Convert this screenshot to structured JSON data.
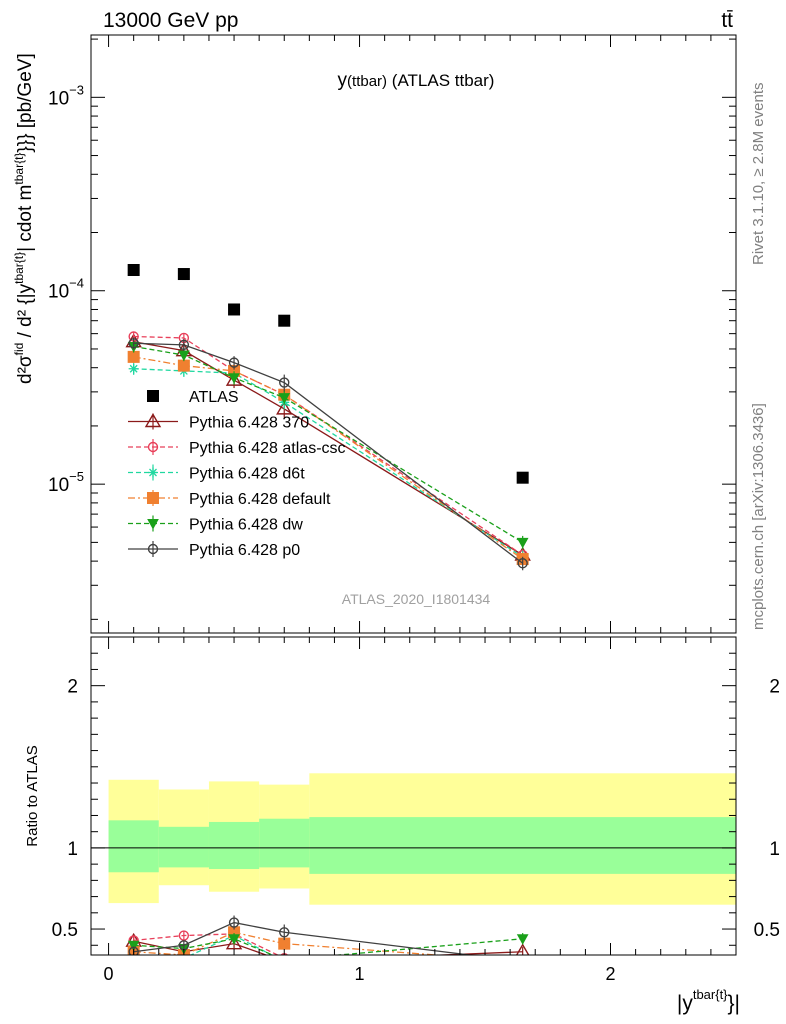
{
  "header": {
    "left": "13000 GeV pp",
    "right": "tt̄",
    "side_right_top": "Rivet 3.1.10, ≥ 2.8M events",
    "side_right_bottom": "mcplots.cern.ch [arXiv:1306.3436]"
  },
  "top_panel": {
    "title_main": "y",
    "title_sub": "(ttbar)",
    "title_tail": " (ATLAS ttbar)",
    "ylabel": "d²σ^fid / d² {|y^tbar{t}| cdot m^tbar{t}}} [pb/GeV]",
    "ylabel_parts": {
      "num": "d²σ",
      "num_sup": "fid",
      "den_a": "d² {|y",
      "den_a_sup": "tbar{t}",
      "den_b": "| cdot m",
      "den_b_sup": "tbar{t}",
      "den_c": "}}} [pb/GeV]"
    },
    "analysis_tag": "ATLAS_2020_I1801434",
    "ytick_labels": [
      "10",
      "10",
      "10"
    ],
    "ytick_exps": [
      "−3",
      "−4",
      "−5"
    ]
  },
  "bottom_panel": {
    "ylabel": "Ratio to ATLAS",
    "ytick_labels": [
      "0.5",
      "1",
      "2"
    ],
    "xtick_labels": [
      "0",
      "1",
      "2"
    ],
    "xlabel_main": "|y",
    "xlabel_sup": "tbar{t}",
    "xlabel_tail": "}|"
  },
  "chart_data": [
    {
      "type": "scatter",
      "panel": "main",
      "yscale": "log",
      "xlim": [
        -0.07,
        2.5
      ],
      "ylim": [
        1.7e-06,
        0.0021
      ],
      "title": "y(ttbar) (ATLAS ttbar)",
      "ylabel": "d²σfid / d²{|ytbar{t}| cdot mtbar{t}}} [pb/GeV]",
      "legend_position": "center-left",
      "data": {
        "name": "ATLAS",
        "x": [
          0.1,
          0.3,
          0.5,
          0.7,
          1.65
        ],
        "y": [
          0.000128,
          0.000122,
          8e-05,
          7e-05,
          1.08e-05
        ],
        "x_bins": [
          [
            0.0,
            0.2
          ],
          [
            0.2,
            0.4
          ],
          [
            0.4,
            0.6
          ],
          [
            0.6,
            0.8
          ],
          [
            0.8,
            2.5
          ]
        ]
      },
      "series": [
        {
          "name": "Pythia 6.428 370",
          "color": "#8b1a1a",
          "marker": "triangle-open",
          "dash": "solid",
          "x": [
            0.1,
            0.3,
            0.5,
            0.7,
            1.65
          ],
          "y": [
            5.45e-05,
            4.9e-05,
            3.45e-05,
            2.45e-05,
            4.3e-06
          ],
          "err": [
            0.08,
            0.07,
            0.09,
            0.1,
            0.08
          ]
        },
        {
          "name": "Pythia 6.428 atlas-csc",
          "color": "#e8405a",
          "marker": "circle-open",
          "dash": "dashed",
          "x": [
            0.1,
            0.3,
            0.5,
            0.7,
            1.65
          ],
          "y": [
            5.8e-05,
            5.7e-05,
            3.85e-05,
            2.9e-05,
            4.3e-06
          ],
          "err": [
            0.06,
            0.06,
            0.07,
            0.08,
            0.07
          ]
        },
        {
          "name": "Pythia 6.428 d6t",
          "color": "#20d8a0",
          "marker": "star",
          "dash": "dashed",
          "x": [
            0.1,
            0.3,
            0.5,
            0.7,
            1.65
          ],
          "y": [
            3.95e-05,
            3.85e-05,
            3.75e-05,
            2.65e-05,
            4.2e-06
          ],
          "err": [
            0.07,
            0.07,
            0.07,
            0.08,
            0.08
          ]
        },
        {
          "name": "Pythia 6.428 default",
          "color": "#f08030",
          "marker": "square",
          "dash": "dashdot",
          "x": [
            0.1,
            0.3,
            0.5,
            0.7,
            1.65
          ],
          "y": [
            4.55e-05,
            4.1e-05,
            3.85e-05,
            2.9e-05,
            4.1e-06
          ],
          "err": [
            0.07,
            0.07,
            0.07,
            0.08,
            0.08
          ]
        },
        {
          "name": "Pythia 6.428 dw",
          "color": "#1aa01a",
          "marker": "triangle-down",
          "dash": "dashed",
          "x": [
            0.1,
            0.3,
            0.5,
            0.7,
            1.65
          ],
          "y": [
            5.15e-05,
            4.65e-05,
            3.55e-05,
            2.8e-05,
            5e-06
          ],
          "err": [
            0.07,
            0.07,
            0.08,
            0.08,
            0.08
          ]
        },
        {
          "name": "Pythia 6.428 p0",
          "color": "#404040",
          "marker": "circle-open",
          "dash": "solid",
          "x": [
            0.1,
            0.3,
            0.5,
            0.7,
            1.65
          ],
          "y": [
            5.35e-05,
            5.25e-05,
            4.25e-05,
            3.35e-05,
            3.9e-06
          ],
          "err": [
            0.07,
            0.07,
            0.08,
            0.1,
            0.08
          ]
        }
      ]
    },
    {
      "type": "line",
      "panel": "ratio",
      "xlim": [
        -0.07,
        2.5
      ],
      "ylim": [
        0.34,
        2.3
      ],
      "xlabel": "|ytbar{t}}|",
      "ylabel": "Ratio to ATLAS",
      "bands": {
        "x_edges": [
          0.0,
          0.2,
          0.4,
          0.6,
          0.8,
          2.5
        ],
        "inner_low": [
          0.85,
          0.88,
          0.87,
          0.88,
          0.84
        ],
        "inner_high": [
          1.17,
          1.13,
          1.16,
          1.18,
          1.19
        ],
        "outer_low": [
          0.66,
          0.77,
          0.73,
          0.75,
          0.65
        ],
        "outer_high": [
          1.42,
          1.36,
          1.41,
          1.39,
          1.46
        ],
        "inner_color": "#99ff99",
        "outer_color": "#ffff99"
      },
      "series": [
        {
          "name": "Pythia 6.428 370",
          "x": [
            0.1,
            0.3,
            0.5,
            0.7,
            1.65
          ],
          "y": [
            0.425,
            0.36,
            0.41,
            0.3,
            0.36
          ]
        },
        {
          "name": "Pythia 6.428 atlas-csc",
          "x": [
            0.1,
            0.3,
            0.5,
            0.7,
            1.65
          ],
          "y": [
            0.43,
            0.46,
            0.47,
            0.32,
            0.3
          ]
        },
        {
          "name": "Pythia 6.428 d6t",
          "x": [
            0.1,
            0.3,
            0.5,
            0.7,
            1.65
          ],
          "y": [
            0.31,
            0.32,
            0.46,
            0.3,
            0.3
          ]
        },
        {
          "name": "Pythia 6.428 default",
          "x": [
            0.1,
            0.3,
            0.5,
            0.7,
            1.65
          ],
          "y": [
            0.36,
            0.34,
            0.48,
            0.41,
            0.3
          ]
        },
        {
          "name": "Pythia 6.428 dw",
          "x": [
            0.1,
            0.3,
            0.5,
            0.7,
            1.65
          ],
          "y": [
            0.4,
            0.38,
            0.44,
            0.31,
            0.44
          ]
        },
        {
          "name": "Pythia 6.428 p0",
          "x": [
            0.1,
            0.3,
            0.5,
            0.7,
            1.65
          ],
          "y": [
            0.36,
            0.4,
            0.54,
            0.48,
            0.3
          ]
        }
      ]
    }
  ]
}
